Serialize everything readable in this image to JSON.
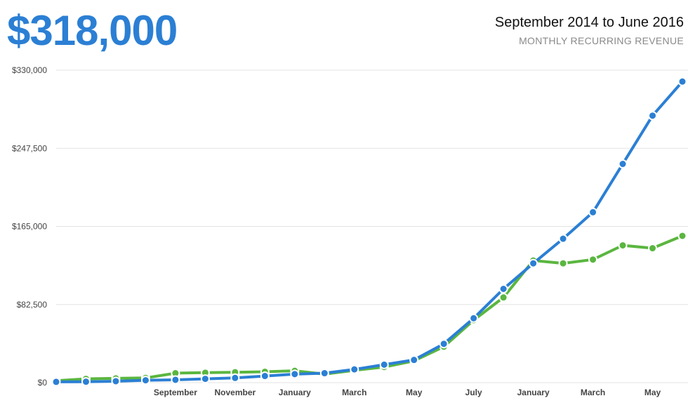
{
  "header": {
    "headline": "$318,000",
    "date_range": "September 2014 to June 2016",
    "subtitle": "MONTHLY RECURRING REVENUE"
  },
  "chart_data": {
    "type": "line",
    "grid": true,
    "ylim": [
      0,
      330000
    ],
    "y_ticks": [
      {
        "value": 0,
        "label": "$0"
      },
      {
        "value": 82500,
        "label": "$82,500"
      },
      {
        "value": 165000,
        "label": "$165,000"
      },
      {
        "value": 247500,
        "label": "$247,500"
      },
      {
        "value": 330000,
        "label": "$330,000"
      }
    ],
    "x_tick_labels": [
      {
        "index": 4,
        "label": "September"
      },
      {
        "index": 6,
        "label": "November"
      },
      {
        "index": 8,
        "label": "January"
      },
      {
        "index": 10,
        "label": "March"
      },
      {
        "index": 12,
        "label": "May"
      },
      {
        "index": 14,
        "label": "July"
      },
      {
        "index": 16,
        "label": "January"
      },
      {
        "index": 18,
        "label": "March"
      },
      {
        "index": 20,
        "label": "May"
      }
    ],
    "colors": {
      "blue": "#2b7fd4",
      "green": "#5ab63f",
      "grid": "#e3e3e3"
    },
    "series": [
      {
        "color_key": "green",
        "values": [
          2000,
          4000,
          4500,
          5000,
          10000,
          10500,
          11000,
          11500,
          12500,
          9000,
          13000,
          16500,
          23000,
          38000,
          66000,
          90000,
          129000,
          126000,
          130000,
          145000,
          142000,
          155000
        ]
      },
      {
        "color_key": "blue",
        "values": [
          800,
          1000,
          1500,
          2500,
          3000,
          4000,
          5000,
          7000,
          9000,
          10000,
          14000,
          19000,
          24000,
          41000,
          68000,
          99000,
          126000,
          152000,
          180000,
          231000,
          282000,
          318000
        ]
      }
    ]
  }
}
